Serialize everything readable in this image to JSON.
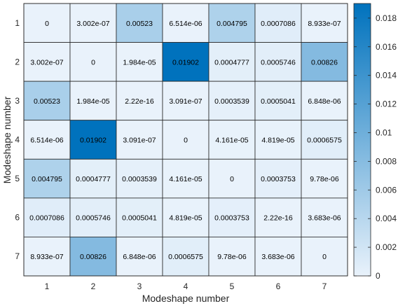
{
  "chart_data": {
    "type": "heatmap",
    "xlabel": "Modeshape number",
    "ylabel": "Modeshape number",
    "x_categories": [
      "1",
      "2",
      "3",
      "4",
      "5",
      "6",
      "7"
    ],
    "y_categories": [
      "1",
      "2",
      "3",
      "4",
      "5",
      "6",
      "7"
    ],
    "values": [
      [
        0,
        3.002e-07,
        0.00523,
        6.514e-06,
        0.004795,
        0.0007086,
        8.933e-07
      ],
      [
        3.002e-07,
        0,
        1.984e-05,
        0.01902,
        0.0004777,
        0.0005746,
        0.00826
      ],
      [
        0.00523,
        1.984e-05,
        2.22e-16,
        3.091e-07,
        0.0003539,
        0.0005041,
        6.848e-06
      ],
      [
        6.514e-06,
        0.01902,
        3.091e-07,
        0,
        4.161e-05,
        4.819e-05,
        0.0006575
      ],
      [
        0.004795,
        0.0004777,
        0.0003539,
        4.161e-05,
        0,
        0.0003753,
        9.78e-06
      ],
      [
        0.0007086,
        0.0005746,
        0.0005041,
        4.819e-05,
        0.0003753,
        2.22e-16,
        3.683e-06
      ],
      [
        8.933e-07,
        0.00826,
        6.848e-06,
        0.0006575,
        9.78e-06,
        3.683e-06,
        0
      ]
    ],
    "labels": [
      [
        "0",
        "3.002e-07",
        "0.00523",
        "6.514e-06",
        "0.004795",
        "0.0007086",
        "8.933e-07"
      ],
      [
        "3.002e-07",
        "0",
        "1.984e-05",
        "0.01902",
        "0.0004777",
        "0.0005746",
        "0.00826"
      ],
      [
        "0.00523",
        "1.984e-05",
        "2.22e-16",
        "3.091e-07",
        "0.0003539",
        "0.0005041",
        "6.848e-06"
      ],
      [
        "6.514e-06",
        "0.01902",
        "3.091e-07",
        "0",
        "4.161e-05",
        "4.819e-05",
        "0.0006575"
      ],
      [
        "0.004795",
        "0.0004777",
        "0.0003539",
        "4.161e-05",
        "0",
        "0.0003753",
        "9.78e-06"
      ],
      [
        "0.0007086",
        "0.0005746",
        "0.0005041",
        "4.819e-05",
        "0.0003753",
        "2.22e-16",
        "3.683e-06"
      ],
      [
        "8.933e-07",
        "0.00826",
        "6.848e-06",
        "0.0006575",
        "9.78e-06",
        "3.683e-06",
        "0"
      ]
    ],
    "colorbar": {
      "ticks": [
        "0",
        "0.002",
        "0.004",
        "0.006",
        "0.008",
        "0.01",
        "0.012",
        "0.014",
        "0.016",
        "0.018"
      ],
      "tick_values": [
        0,
        0.002,
        0.004,
        0.006,
        0.008,
        0.01,
        0.012,
        0.014,
        0.016,
        0.018
      ],
      "min": 0,
      "max": 0.01902,
      "color_low": "#e9f2fb",
      "color_high": "#0072bd"
    }
  }
}
